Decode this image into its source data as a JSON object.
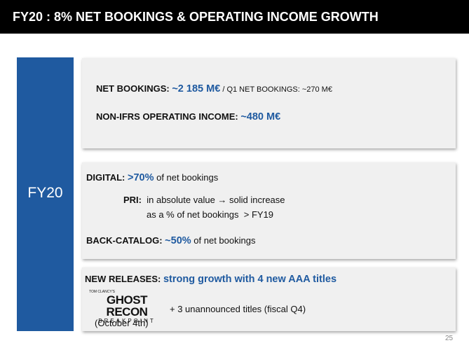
{
  "header": {
    "title": "FY20 : 8% NET BOOKINGS & OPERATING INCOME GROWTH"
  },
  "sidebar": {
    "label": "FY20"
  },
  "box1": {
    "net_bookings": {
      "label": "NET BOOKINGS: ",
      "value": "~2 185 M€",
      "note": " / Q1 NET BOOKINGS: ~270 M€"
    },
    "operating_income": {
      "label": "NON-IFRS OPERATING INCOME: ",
      "value": "~480 M€"
    }
  },
  "box2": {
    "digital": {
      "label": "DIGITAL: ",
      "value": ">70%",
      "rest": " of net bookings"
    },
    "pri": {
      "label": "PRI:",
      "line1": "in absolute value → solid increase",
      "line2": "as a % of net bookings",
      "line2_value": "> FY19"
    },
    "back_catalog": {
      "label": "BACK-CATALOG: ",
      "value": "~50%",
      "rest": " of net bookings"
    }
  },
  "box3": {
    "new_releases": {
      "label": "NEW RELEASES: ",
      "value": "strong growth with 4 new AAA titles"
    },
    "logo": {
      "top": "TOM CLANCY'S",
      "main": "GHOST RECON",
      "sub": "BREAKPOINT"
    },
    "release_date": "(October 4th)",
    "unannounced": "+ 3 unannounced titles (fiscal Q4)"
  },
  "page_number": "25"
}
